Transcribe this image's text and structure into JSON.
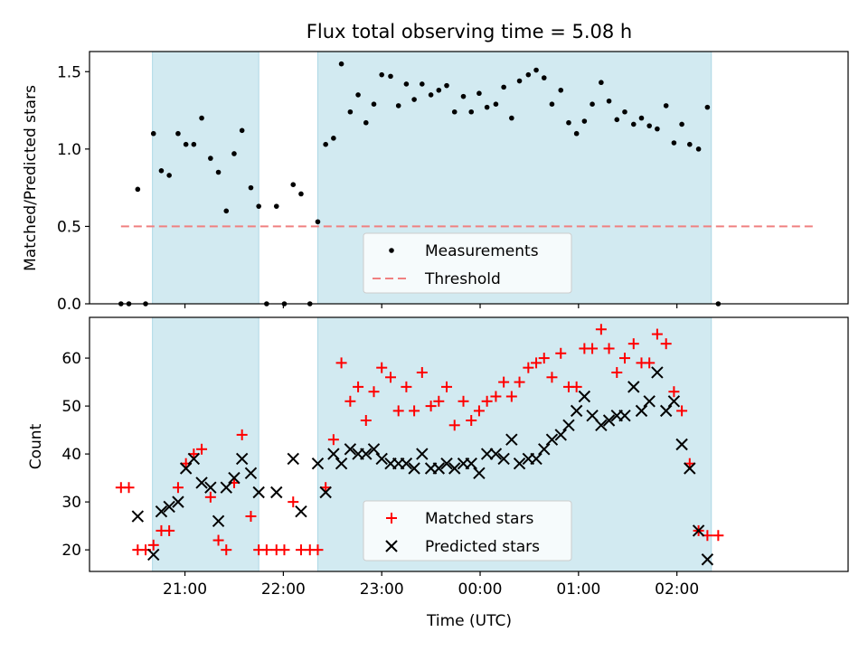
{
  "title": "Flux total observing time = 5.08 h",
  "colors": {
    "band": "#add8e6",
    "threshold": "#f08080",
    "measurement": "#000000",
    "matched": "#ff0000",
    "predicted": "#000000"
  },
  "chart_data": [
    {
      "type": "scatter",
      "ylabel": "Matched/Predicted stars",
      "x_unit": "hours after 21:00 UTC",
      "xlim": [
        -0.97,
        6.74
      ],
      "ylim": [
        0,
        1.63
      ],
      "yticks": [
        0.0,
        0.5,
        1.0,
        1.5
      ],
      "ytick_labels": [
        "0.0",
        "0.5",
        "1.0",
        "1.5"
      ],
      "shaded_intervals": [
        [
          -0.33,
          0.75
        ],
        [
          1.35,
          5.35
        ]
      ],
      "legend": {
        "location": "lower center",
        "entries": [
          "Measurements",
          "Threshold"
        ]
      },
      "threshold": {
        "name": "Threshold",
        "value": 0.5,
        "x_range": [
          -0.65,
          6.4
        ]
      },
      "series": [
        {
          "name": "Measurements",
          "marker": "dot",
          "points": [
            [
              -0.65,
              0.0
            ],
            [
              -0.57,
              0.0
            ],
            [
              -0.48,
              0.74
            ],
            [
              -0.4,
              0.0
            ],
            [
              -0.32,
              1.1
            ],
            [
              -0.24,
              0.86
            ],
            [
              -0.16,
              0.83
            ],
            [
              -0.07,
              1.1
            ],
            [
              0.01,
              1.03
            ],
            [
              0.09,
              1.03
            ],
            [
              0.17,
              1.2
            ],
            [
              0.26,
              0.94
            ],
            [
              0.34,
              0.85
            ],
            [
              0.42,
              0.6
            ],
            [
              0.5,
              0.97
            ],
            [
              0.58,
              1.12
            ],
            [
              0.67,
              0.75
            ],
            [
              0.75,
              0.63
            ],
            [
              0.83,
              0.0
            ],
            [
              0.93,
              0.63
            ],
            [
              1.01,
              0.0
            ],
            [
              1.1,
              0.77
            ],
            [
              1.18,
              0.71
            ],
            [
              1.27,
              0.0
            ],
            [
              1.35,
              0.53
            ],
            [
              1.43,
              1.03
            ],
            [
              1.51,
              1.07
            ],
            [
              1.59,
              1.55
            ],
            [
              1.68,
              1.24
            ],
            [
              1.76,
              1.35
            ],
            [
              1.84,
              1.17
            ],
            [
              1.92,
              1.29
            ],
            [
              2.0,
              1.48
            ],
            [
              2.09,
              1.47
            ],
            [
              2.17,
              1.28
            ],
            [
              2.25,
              1.42
            ],
            [
              2.33,
              1.32
            ],
            [
              2.41,
              1.42
            ],
            [
              2.5,
              1.35
            ],
            [
              2.58,
              1.38
            ],
            [
              2.66,
              1.41
            ],
            [
              2.74,
              1.24
            ],
            [
              2.83,
              1.34
            ],
            [
              2.91,
              1.24
            ],
            [
              2.99,
              1.36
            ],
            [
              3.07,
              1.27
            ],
            [
              3.16,
              1.29
            ],
            [
              3.24,
              1.4
            ],
            [
              3.32,
              1.2
            ],
            [
              3.4,
              1.44
            ],
            [
              3.49,
              1.48
            ],
            [
              3.57,
              1.51
            ],
            [
              3.65,
              1.46
            ],
            [
              3.73,
              1.29
            ],
            [
              3.82,
              1.38
            ],
            [
              3.9,
              1.17
            ],
            [
              3.98,
              1.1
            ],
            [
              4.06,
              1.18
            ],
            [
              4.14,
              1.29
            ],
            [
              4.23,
              1.43
            ],
            [
              4.31,
              1.31
            ],
            [
              4.39,
              1.19
            ],
            [
              4.47,
              1.24
            ],
            [
              4.56,
              1.16
            ],
            [
              4.64,
              1.2
            ],
            [
              4.72,
              1.15
            ],
            [
              4.8,
              1.13
            ],
            [
              4.89,
              1.28
            ],
            [
              4.97,
              1.04
            ],
            [
              5.05,
              1.16
            ],
            [
              5.13,
              1.03
            ],
            [
              5.22,
              1.0
            ],
            [
              5.31,
              1.27
            ],
            [
              5.42,
              0.0
            ]
          ]
        }
      ]
    },
    {
      "type": "scatter",
      "xlabel": "Time (UTC)",
      "ylabel": "Count",
      "x_unit": "hours after 21:00 UTC",
      "xlim": [
        -0.97,
        6.74
      ],
      "ylim": [
        15.5,
        68.5
      ],
      "yticks": [
        20,
        30,
        40,
        50,
        60
      ],
      "ytick_labels": [
        "20",
        "30",
        "40",
        "50",
        "60"
      ],
      "xticks": [
        0,
        1,
        2,
        3,
        4,
        5
      ],
      "xtick_labels": [
        "21:00",
        "22:00",
        "23:00",
        "00:00",
        "01:00",
        "02:00"
      ],
      "shaded_intervals": [
        [
          -0.33,
          0.75
        ],
        [
          1.35,
          5.35
        ]
      ],
      "legend": {
        "location": "lower center",
        "entries": [
          "Matched stars",
          "Predicted stars"
        ]
      },
      "series": [
        {
          "name": "Matched stars",
          "marker": "plus",
          "points": [
            [
              -0.65,
              33
            ],
            [
              -0.57,
              33
            ],
            [
              -0.48,
              20
            ],
            [
              -0.4,
              20
            ],
            [
              -0.32,
              21
            ],
            [
              -0.24,
              24
            ],
            [
              -0.16,
              24
            ],
            [
              -0.07,
              33
            ],
            [
              0.01,
              38
            ],
            [
              0.09,
              40
            ],
            [
              0.17,
              41
            ],
            [
              0.26,
              31
            ],
            [
              0.34,
              22
            ],
            [
              0.42,
              20
            ],
            [
              0.5,
              34
            ],
            [
              0.58,
              44
            ],
            [
              0.67,
              27
            ],
            [
              0.75,
              20
            ],
            [
              0.83,
              20
            ],
            [
              0.93,
              20
            ],
            [
              1.01,
              20
            ],
            [
              1.1,
              30
            ],
            [
              1.18,
              20
            ],
            [
              1.27,
              20
            ],
            [
              1.35,
              20
            ],
            [
              1.43,
              33
            ],
            [
              1.51,
              43
            ],
            [
              1.59,
              59
            ],
            [
              1.68,
              51
            ],
            [
              1.76,
              54
            ],
            [
              1.84,
              47
            ],
            [
              1.92,
              53
            ],
            [
              2.0,
              58
            ],
            [
              2.09,
              56
            ],
            [
              2.17,
              49
            ],
            [
              2.25,
              54
            ],
            [
              2.33,
              49
            ],
            [
              2.41,
              57
            ],
            [
              2.5,
              50
            ],
            [
              2.58,
              51
            ],
            [
              2.66,
              54
            ],
            [
              2.74,
              46
            ],
            [
              2.83,
              51
            ],
            [
              2.91,
              47
            ],
            [
              2.99,
              49
            ],
            [
              3.07,
              51
            ],
            [
              3.16,
              52
            ],
            [
              3.24,
              55
            ],
            [
              3.32,
              52
            ],
            [
              3.4,
              55
            ],
            [
              3.49,
              58
            ],
            [
              3.57,
              59
            ],
            [
              3.65,
              60
            ],
            [
              3.73,
              56
            ],
            [
              3.82,
              61
            ],
            [
              3.9,
              54
            ],
            [
              3.98,
              54
            ],
            [
              4.06,
              62
            ],
            [
              4.14,
              62
            ],
            [
              4.23,
              66
            ],
            [
              4.31,
              62
            ],
            [
              4.39,
              57
            ],
            [
              4.47,
              60
            ],
            [
              4.56,
              63
            ],
            [
              4.64,
              59
            ],
            [
              4.72,
              59
            ],
            [
              4.8,
              65
            ],
            [
              4.89,
              63
            ],
            [
              4.97,
              53
            ],
            [
              5.05,
              49
            ],
            [
              5.13,
              38
            ],
            [
              5.22,
              24
            ],
            [
              5.31,
              23
            ],
            [
              5.42,
              23
            ]
          ]
        },
        {
          "name": "Predicted stars",
          "marker": "x",
          "points": [
            [
              -0.48,
              27
            ],
            [
              -0.32,
              19
            ],
            [
              -0.24,
              28
            ],
            [
              -0.16,
              29
            ],
            [
              -0.07,
              30
            ],
            [
              0.01,
              37
            ],
            [
              0.09,
              39
            ],
            [
              0.17,
              34
            ],
            [
              0.26,
              33
            ],
            [
              0.34,
              26
            ],
            [
              0.42,
              33
            ],
            [
              0.5,
              35
            ],
            [
              0.58,
              39
            ],
            [
              0.67,
              36
            ],
            [
              0.75,
              32
            ],
            [
              0.93,
              32
            ],
            [
              1.1,
              39
            ],
            [
              1.18,
              28
            ],
            [
              1.35,
              38
            ],
            [
              1.43,
              32
            ],
            [
              1.51,
              40
            ],
            [
              1.59,
              38
            ],
            [
              1.68,
              41
            ],
            [
              1.76,
              40
            ],
            [
              1.84,
              40
            ],
            [
              1.92,
              41
            ],
            [
              2.0,
              39
            ],
            [
              2.09,
              38
            ],
            [
              2.17,
              38
            ],
            [
              2.25,
              38
            ],
            [
              2.33,
              37
            ],
            [
              2.41,
              40
            ],
            [
              2.5,
              37
            ],
            [
              2.58,
              37
            ],
            [
              2.66,
              38
            ],
            [
              2.74,
              37
            ],
            [
              2.83,
              38
            ],
            [
              2.91,
              38
            ],
            [
              2.99,
              36
            ],
            [
              3.07,
              40
            ],
            [
              3.16,
              40
            ],
            [
              3.24,
              39
            ],
            [
              3.32,
              43
            ],
            [
              3.4,
              38
            ],
            [
              3.49,
              39
            ],
            [
              3.57,
              39
            ],
            [
              3.65,
              41
            ],
            [
              3.73,
              43
            ],
            [
              3.82,
              44
            ],
            [
              3.9,
              46
            ],
            [
              3.98,
              49
            ],
            [
              4.06,
              52
            ],
            [
              4.14,
              48
            ],
            [
              4.23,
              46
            ],
            [
              4.31,
              47
            ],
            [
              4.39,
              48
            ],
            [
              4.47,
              48
            ],
            [
              4.56,
              54
            ],
            [
              4.64,
              49
            ],
            [
              4.72,
              51
            ],
            [
              4.8,
              57
            ],
            [
              4.89,
              49
            ],
            [
              4.97,
              51
            ],
            [
              5.05,
              42
            ],
            [
              5.13,
              37
            ],
            [
              5.22,
              24
            ],
            [
              5.31,
              18
            ]
          ]
        }
      ]
    }
  ]
}
